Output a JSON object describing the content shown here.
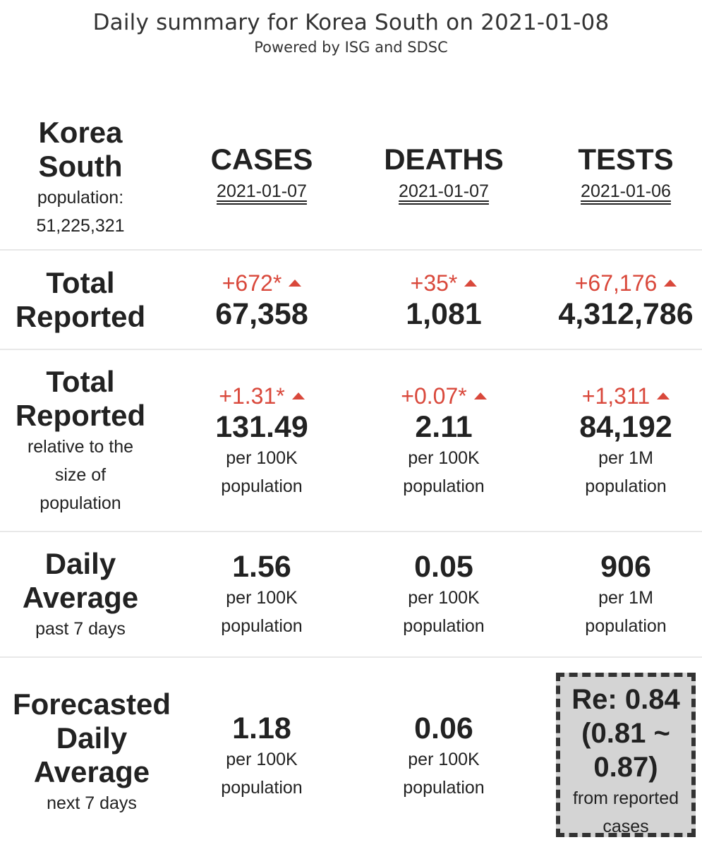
{
  "header": {
    "title": "Daily summary for Korea South on 2021-01-08",
    "subtitle": "Powered by ISG and SDSC"
  },
  "country": {
    "name_line1": "Korea",
    "name_line2": "South",
    "population_label": "population:",
    "population_value": "51,225,321"
  },
  "columns": [
    {
      "name": "CASES",
      "date": "2021-01-07"
    },
    {
      "name": "DEATHS",
      "date": "2021-01-07"
    },
    {
      "name": "TESTS",
      "date": "2021-01-06"
    }
  ],
  "rows": {
    "total_reported": {
      "label_line1": "Total",
      "label_line2": "Reported",
      "cells": [
        {
          "delta": "+672*",
          "value": "67,358"
        },
        {
          "delta": "+35*",
          "value": "1,081"
        },
        {
          "delta": "+67,176",
          "value": "4,312,786"
        }
      ]
    },
    "relative": {
      "label_line1": "Total",
      "label_line2": "Reported",
      "sub_line1": "relative to the",
      "sub_line2": "size of",
      "sub_line3": "population",
      "cells": [
        {
          "delta": "+1.31*",
          "value": "131.49",
          "unit_line1": "per 100K",
          "unit_line2": "population"
        },
        {
          "delta": "+0.07*",
          "value": "2.11",
          "unit_line1": "per 100K",
          "unit_line2": "population"
        },
        {
          "delta": "+1,311",
          "value": "84,192",
          "unit_line1": "per 1M",
          "unit_line2": "population"
        }
      ]
    },
    "daily_average": {
      "label_line1": "Daily",
      "label_line2": "Average",
      "sub_line1": "past 7 days",
      "cells": [
        {
          "value": "1.56",
          "unit_line1": "per 100K",
          "unit_line2": "population"
        },
        {
          "value": "0.05",
          "unit_line1": "per 100K",
          "unit_line2": "population"
        },
        {
          "value": "906",
          "unit_line1": "per 1M",
          "unit_line2": "population"
        }
      ]
    },
    "forecast": {
      "label_line1": "Forecasted",
      "label_line2": "Daily",
      "label_line3": "Average",
      "sub_line1": "next 7 days",
      "cells": [
        {
          "value": "1.18",
          "unit_line1": "per 100K",
          "unit_line2": "population"
        },
        {
          "value": "0.06",
          "unit_line1": "per 100K",
          "unit_line2": "population"
        }
      ],
      "re_box": {
        "line1": "Re: 0.84",
        "line2": "(0.81 ~",
        "line3": "0.87)",
        "note_line1": "from reported",
        "note_line2": "cases"
      }
    }
  },
  "colors": {
    "increase": "#d9483b",
    "text": "#222222",
    "re_box_bg": "#d4d4d4"
  },
  "icons": {
    "increase": "triangle-up-icon"
  }
}
